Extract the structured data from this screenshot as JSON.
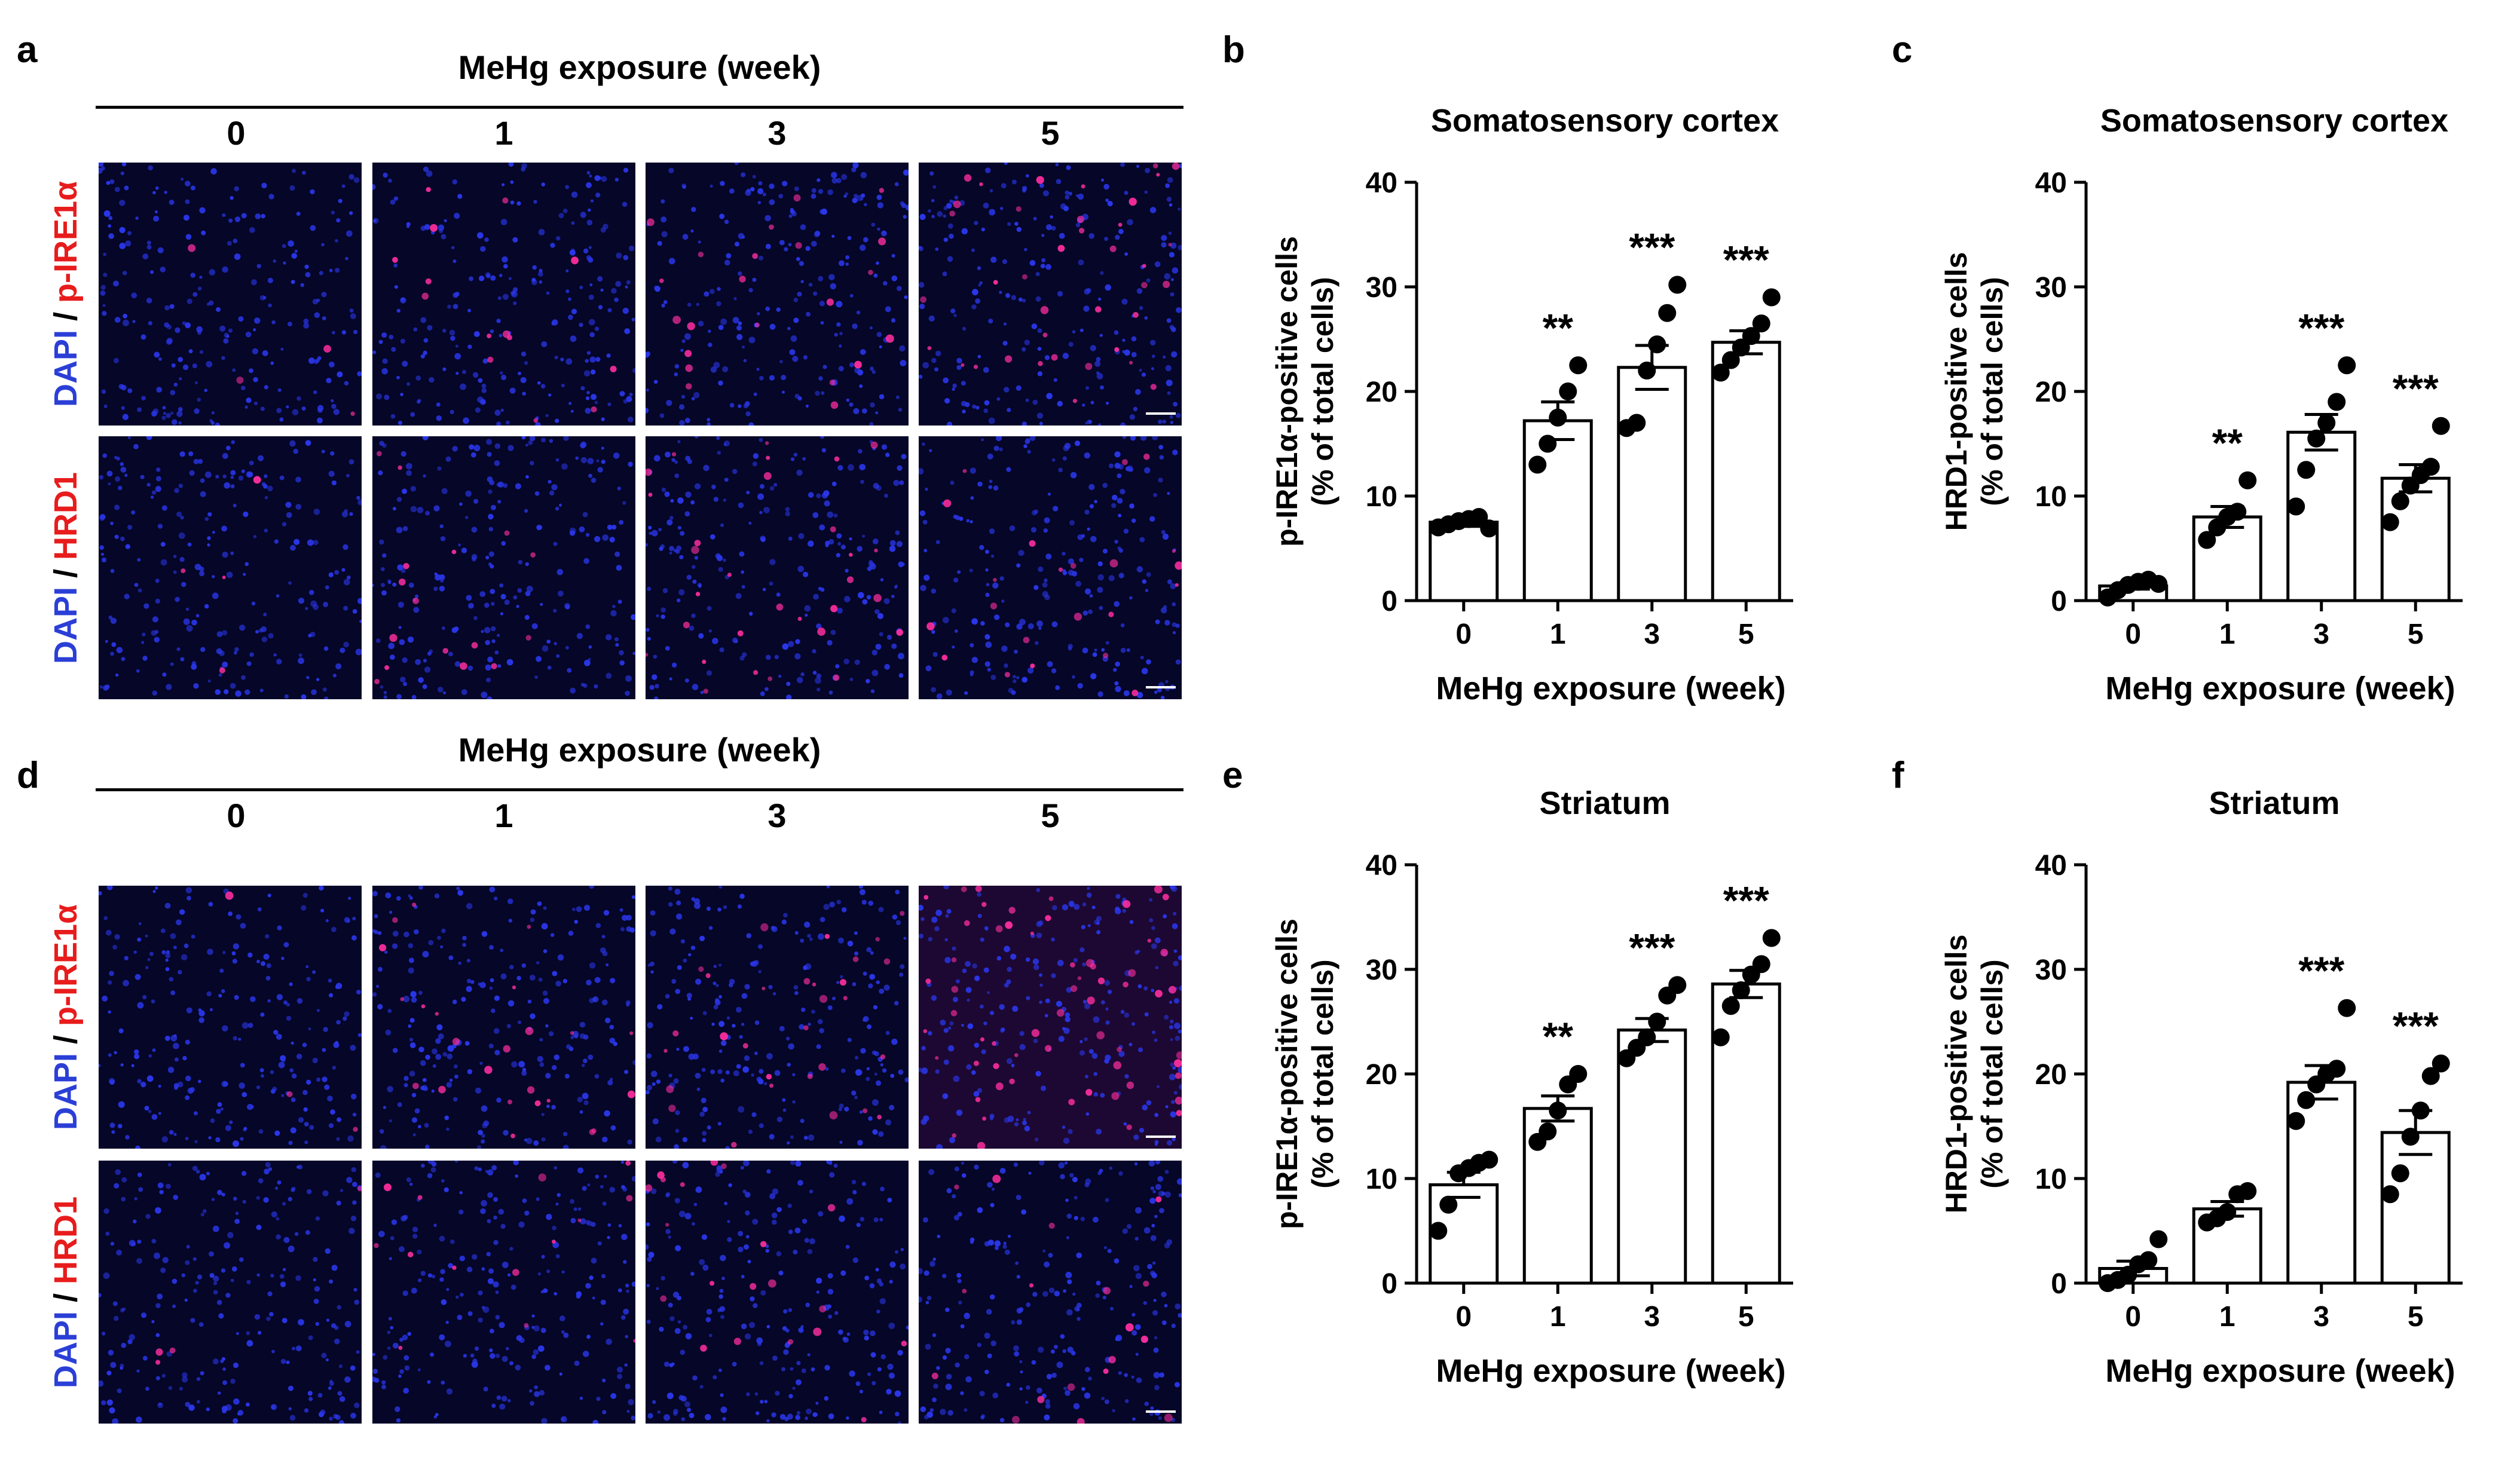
{
  "panel_letters": {
    "a": "a",
    "b": "b",
    "c": "c",
    "d": "d",
    "e": "e",
    "f": "f"
  },
  "micrograph_panels": [
    {
      "letter": "a",
      "header": "MeHg exposure (week)",
      "columns": [
        "0",
        "1",
        "3",
        "5"
      ],
      "rows": [
        {
          "stain_blue": "DAPI",
          "separator": " / ",
          "stain_red": "p-IRE1α"
        },
        {
          "stain_blue": "DAPI",
          "separator": " / ",
          "stain_red": "HRD1"
        }
      ]
    },
    {
      "letter": "d",
      "header": "MeHg exposure (week)",
      "columns": [
        "0",
        "1",
        "3",
        "5"
      ],
      "rows": [
        {
          "stain_blue": "DAPI",
          "separator": " / ",
          "stain_red": "p-IRE1α"
        },
        {
          "stain_blue": "DAPI",
          "separator": " / ",
          "stain_red": "HRD1"
        }
      ]
    }
  ],
  "colors": {
    "dapi_blue": "#2b3fd6",
    "stain_red": "#e81c1c",
    "tile_bg": "#050628",
    "nucleus": "#2a36e8",
    "pink": "#ff2ea0"
  },
  "chart_data": [
    {
      "id": "b",
      "type": "bar",
      "title": "Somatosensory cortex",
      "categories": [
        "0",
        "1",
        "3",
        "5"
      ],
      "values": [
        7.5,
        17.2,
        22.3,
        24.7
      ],
      "sem": [
        0.4,
        1.8,
        2.1,
        1.1
      ],
      "points": [
        [
          7.0,
          7.3,
          7.6,
          7.8,
          8.0,
          6.9
        ],
        [
          13.0,
          15.0,
          17.5,
          20.0,
          22.5
        ],
        [
          16.5,
          17.0,
          22.0,
          24.5,
          27.5,
          30.2
        ],
        [
          21.8,
          23.0,
          24.2,
          25.3,
          26.5,
          29.0
        ]
      ],
      "significance": [
        "",
        "**",
        "***",
        "***"
      ],
      "ylabel": "p-IRE1α-positive cells",
      "ylabel2": "(% of total cells)",
      "xlabel": "MeHg exposure (week)",
      "ylim": [
        0,
        40
      ],
      "yticks": [
        "0",
        "10",
        "20",
        "30",
        "40"
      ]
    },
    {
      "id": "c",
      "type": "bar",
      "title": "Somatosensory cortex",
      "categories": [
        "0",
        "1",
        "3",
        "5"
      ],
      "values": [
        1.4,
        8.0,
        16.1,
        11.7
      ],
      "sem": [
        0.3,
        1.0,
        1.7,
        1.3
      ],
      "points": [
        [
          0.3,
          1.0,
          1.5,
          1.8,
          2.0,
          1.6
        ],
        [
          5.8,
          7.0,
          8.0,
          8.5,
          11.5
        ],
        [
          9.0,
          12.5,
          15.5,
          17.0,
          19.0,
          22.5
        ],
        [
          7.5,
          9.5,
          11.0,
          12.0,
          12.8,
          16.7
        ]
      ],
      "significance": [
        "",
        "**",
        "***",
        "***"
      ],
      "ylabel": "HRD1-positive cells",
      "ylabel2": "(% of total cells)",
      "xlabel": "MeHg exposure (week)",
      "ylim": [
        0,
        40
      ],
      "yticks": [
        "0",
        "10",
        "20",
        "30",
        "40"
      ]
    },
    {
      "id": "e",
      "type": "bar",
      "title": "Striatum",
      "categories": [
        "0",
        "1",
        "3",
        "5"
      ],
      "values": [
        9.4,
        16.7,
        24.2,
        28.6
      ],
      "sem": [
        1.2,
        1.2,
        1.1,
        1.3
      ],
      "points": [
        [
          5.0,
          7.5,
          10.5,
          11.0,
          11.5,
          11.8
        ],
        [
          13.5,
          14.5,
          16.5,
          19.0,
          20.0
        ],
        [
          21.5,
          22.5,
          23.5,
          25.0,
          27.5,
          28.5
        ],
        [
          23.5,
          26.5,
          28.0,
          29.5,
          30.5,
          33.0
        ]
      ],
      "significance": [
        "",
        "**",
        "***",
        "***"
      ],
      "ylabel": "p-IRE1α-positive cells",
      "ylabel2": "(% of total cells)",
      "xlabel": "MeHg exposure (week)",
      "ylim": [
        0,
        40
      ],
      "yticks": [
        "0",
        "10",
        "20",
        "30",
        "40"
      ]
    },
    {
      "id": "f",
      "type": "bar",
      "title": "Striatum",
      "categories": [
        "0",
        "1",
        "3",
        "5"
      ],
      "values": [
        1.4,
        7.1,
        19.2,
        14.4
      ],
      "sem": [
        0.7,
        0.7,
        1.6,
        2.1
      ],
      "points": [
        [
          0.0,
          0.3,
          0.8,
          1.8,
          2.2,
          4.2
        ],
        [
          5.8,
          6.2,
          6.8,
          8.5,
          8.8
        ],
        [
          15.5,
          17.5,
          19.0,
          20.0,
          20.5,
          26.3
        ],
        [
          8.5,
          10.5,
          14.0,
          16.5,
          19.8,
          21.0
        ]
      ],
      "significance": [
        "",
        "",
        "***",
        "***"
      ],
      "ylabel": "HRD1-positive cells",
      "ylabel2": "(% of total cells)",
      "xlabel": "MeHg exposure (week)",
      "ylim": [
        0,
        40
      ],
      "yticks": [
        "0",
        "10",
        "20",
        "30",
        "40"
      ]
    }
  ]
}
